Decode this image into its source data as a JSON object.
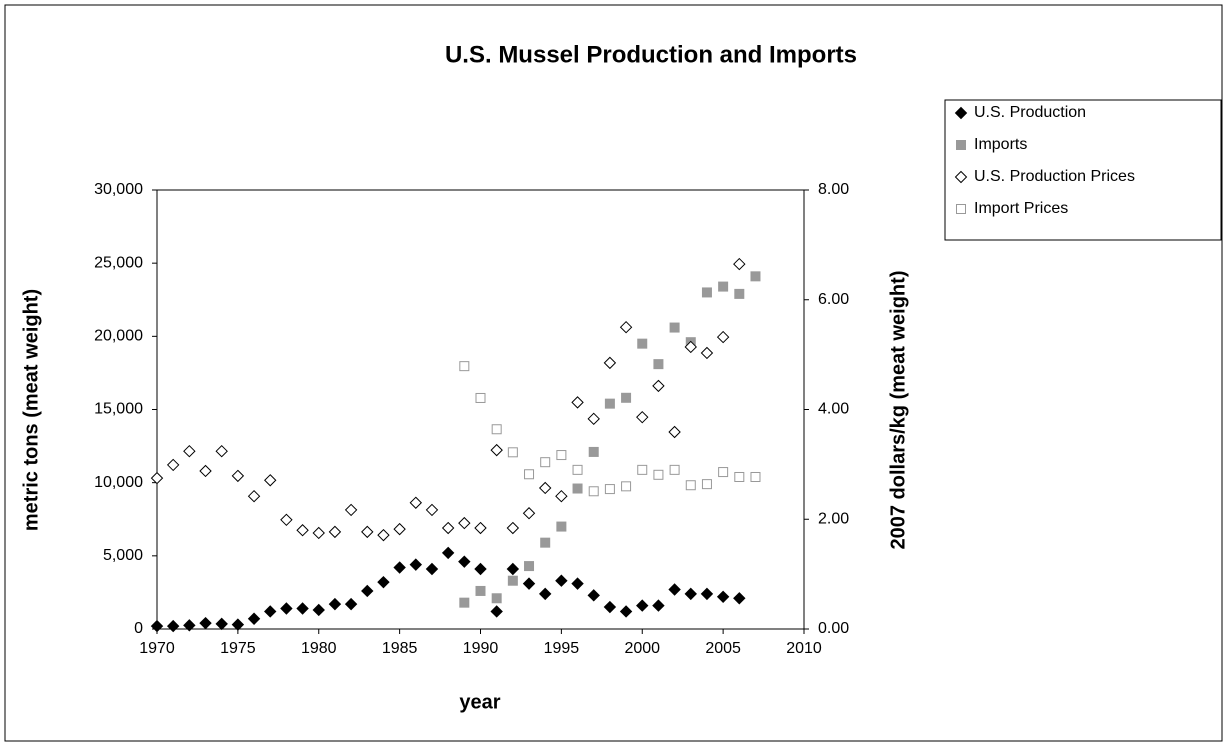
{
  "chart_data": {
    "type": "scatter",
    "title": "U.S. Mussel Production and Imports",
    "xlabel": "year",
    "ylabel": "metric tons (meat weight)",
    "y2label": "2007 dollars/kg (meat weight)",
    "xlim": [
      1970,
      2010
    ],
    "xticks": [
      1970,
      1975,
      1980,
      1985,
      1990,
      1995,
      2000,
      2005,
      2010
    ],
    "ylim": [
      0,
      30000
    ],
    "yticks": [
      0,
      {
        "value": 5000,
        "label": "5,000"
      },
      {
        "value": 10000,
        "label": "10,000"
      },
      {
        "value": 15000,
        "label": "15,000"
      },
      {
        "value": 20000,
        "label": "20,000"
      },
      {
        "value": 25000,
        "label": "25,000"
      },
      {
        "value": 30000,
        "label": "30,000"
      }
    ],
    "y2lim": [
      0,
      8
    ],
    "y2ticks": [
      {
        "value": 0,
        "label": "0.00"
      },
      {
        "value": 2,
        "label": "2.00"
      },
      {
        "value": 4,
        "label": "4.00"
      },
      {
        "value": 6,
        "label": "6.00"
      },
      {
        "value": 8,
        "label": "8.00"
      }
    ],
    "grid": false,
    "legend": "upper right",
    "series": [
      {
        "name": "U.S. Production",
        "color": "#000000",
        "marker": "diamond",
        "filled": true,
        "axis": "y",
        "x": [
          1970,
          1971,
          1972,
          1973,
          1974,
          1975,
          1976,
          1977,
          1978,
          1979,
          1980,
          1981,
          1982,
          1983,
          1984,
          1985,
          1986,
          1987,
          1988,
          1989,
          1990,
          1991,
          1992,
          1993,
          1994,
          1995,
          1996,
          1997,
          1998,
          1999,
          2000,
          2001,
          2002,
          2003,
          2004,
          2005,
          2006
        ],
        "values": [
          200,
          200,
          250,
          400,
          350,
          300,
          700,
          1200,
          1400,
          1400,
          1300,
          1700,
          1700,
          2600,
          3200,
          4200,
          4400,
          4100,
          5200,
          4600,
          4100,
          1200,
          4100,
          3100,
          2400,
          3300,
          3100,
          2300,
          1500,
          1200,
          1600,
          1600,
          2700,
          2400,
          2400,
          2200,
          2100
        ]
      },
      {
        "name": "Imports",
        "color": "#999999",
        "marker": "square",
        "filled": true,
        "axis": "y",
        "x": [
          1989,
          1990,
          1991,
          1992,
          1993,
          1994,
          1995,
          1996,
          1997,
          1998,
          1999,
          2000,
          2001,
          2002,
          2003,
          2004,
          2005,
          2006,
          2007
        ],
        "values": [
          1800,
          2600,
          2100,
          3300,
          4300,
          5900,
          7000,
          9600,
          12100,
          15400,
          15800,
          19500,
          18100,
          20600,
          19600,
          23000,
          23400,
          22900,
          24100
        ]
      },
      {
        "name": "U.S. Production Prices",
        "color": "#000000",
        "marker": "diamond",
        "filled": false,
        "axis": "y2",
        "x": [
          1970,
          1971,
          1972,
          1973,
          1974,
          1975,
          1976,
          1977,
          1978,
          1979,
          1980,
          1981,
          1982,
          1983,
          1984,
          1985,
          1986,
          1987,
          1988,
          1989,
          1990,
          1991,
          1992,
          1993,
          1994,
          1995,
          1996,
          1997,
          1998,
          1999,
          2000,
          2001,
          2002,
          2003,
          2004,
          2005,
          2006
        ],
        "values": [
          2.75,
          2.99,
          3.24,
          2.88,
          3.24,
          2.79,
          2.42,
          2.71,
          1.99,
          1.8,
          1.75,
          1.77,
          2.17,
          1.77,
          1.71,
          1.82,
          2.3,
          2.17,
          1.84,
          1.93,
          1.84,
          3.26,
          1.84,
          2.11,
          2.57,
          2.42,
          4.13,
          3.83,
          4.85,
          5.5,
          3.86,
          4.43,
          3.59,
          5.14,
          5.03,
          5.32,
          6.65
        ]
      },
      {
        "name": "Import Prices",
        "color": "#999999",
        "marker": "square",
        "filled": false,
        "axis": "y2",
        "x": [
          1989,
          1990,
          1991,
          1992,
          1993,
          1994,
          1995,
          1996,
          1997,
          1998,
          1999,
          2000,
          2001,
          2002,
          2003,
          2004,
          2005,
          2006,
          2007
        ],
        "values": [
          4.79,
          4.21,
          3.64,
          3.22,
          2.82,
          3.04,
          3.17,
          2.9,
          2.51,
          2.55,
          2.6,
          2.9,
          2.81,
          2.9,
          2.62,
          2.64,
          2.86,
          2.77,
          2.77
        ]
      }
    ]
  }
}
